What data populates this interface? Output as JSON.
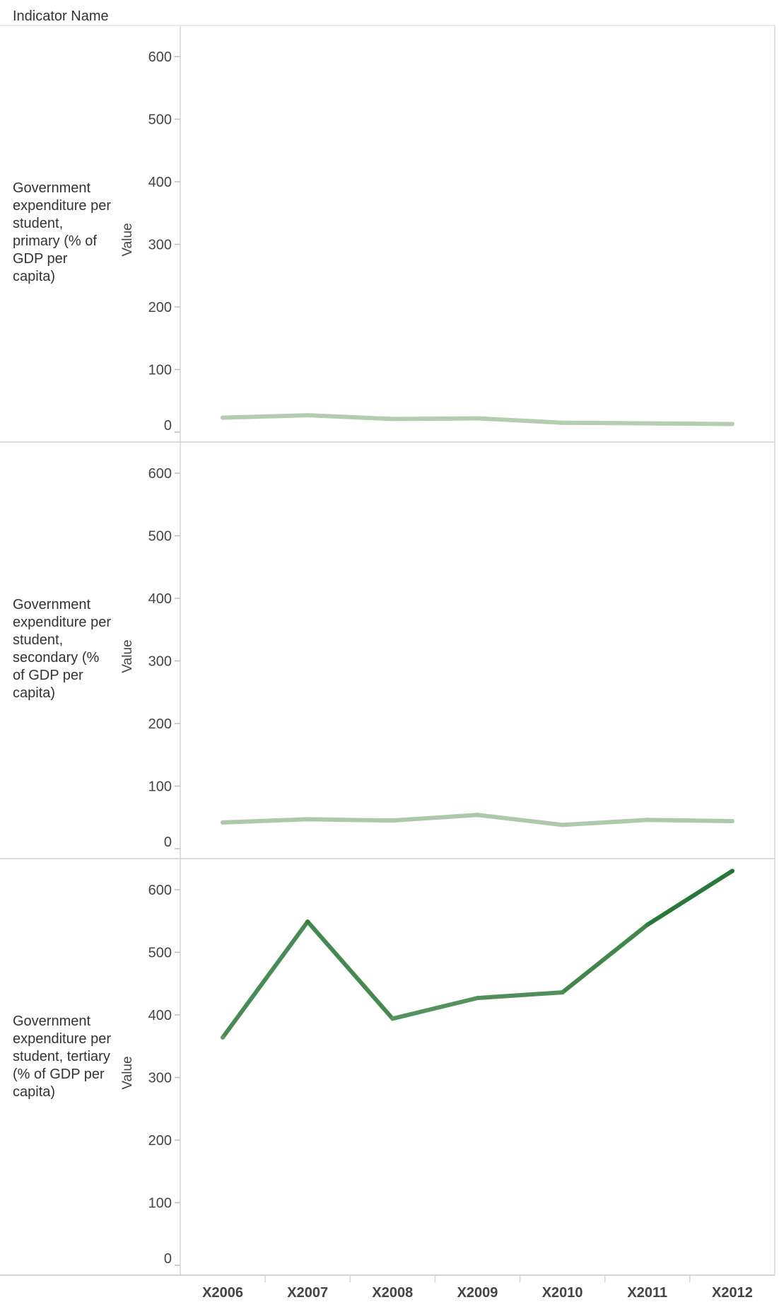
{
  "header": {
    "label": "Indicator Name"
  },
  "chart_data": {
    "type": "line",
    "y_axis_label": "Value",
    "ylim": [
      0,
      650
    ],
    "y_ticks": [
      0,
      100,
      200,
      300,
      400,
      500,
      600
    ],
    "categories": [
      "X2006",
      "X2007",
      "X2008",
      "X2009",
      "X2010",
      "X2011",
      "X2012"
    ],
    "grid": false,
    "color_scale": {
      "low": "#b7d0b3",
      "high": "#1a6e2c"
    },
    "panels": [
      {
        "name": "Government expenditure per student, primary (% of GDP per capita)",
        "values": [
          23,
          27,
          21,
          22,
          15,
          14,
          13
        ]
      },
      {
        "name": "Government expenditure per student, secondary (% of GDP per capita)",
        "values": [
          42,
          47,
          45,
          54,
          38,
          46,
          44
        ]
      },
      {
        "name": "Government expenditure per student, tertiary (% of GDP per capita)",
        "values": [
          364,
          549,
          394,
          427,
          436,
          544,
          630
        ]
      }
    ]
  }
}
